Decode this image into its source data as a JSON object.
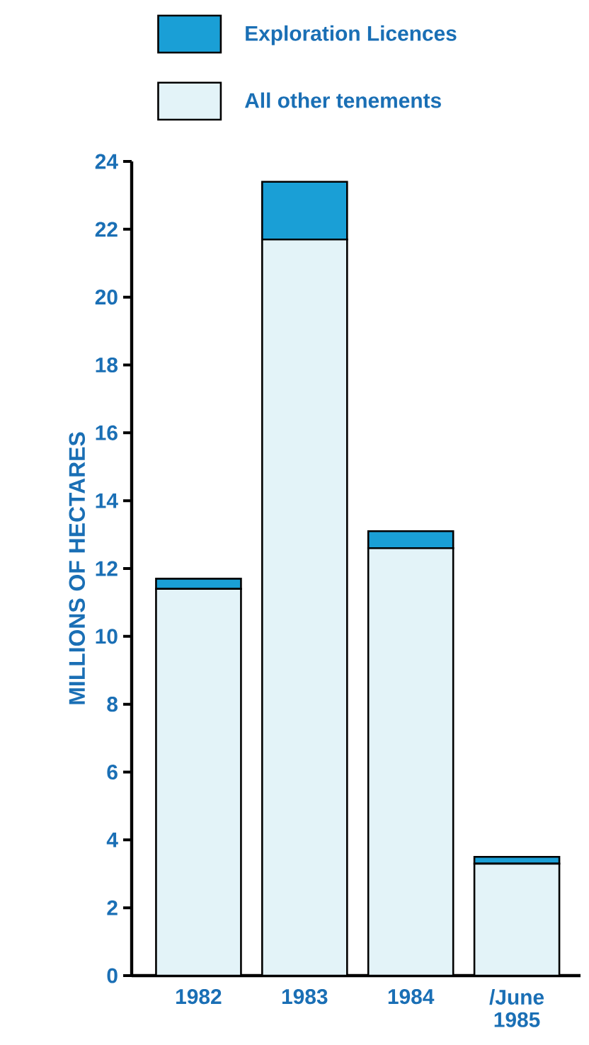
{
  "chart_data": {
    "type": "bar",
    "stacked": true,
    "ylabel": "MILLIONS OF HECTARES",
    "categories": [
      "1982",
      "1983",
      "1984",
      "/June 1985"
    ],
    "series": [
      {
        "name": "All other tenements",
        "color": "#e3f3f8",
        "values": [
          11.4,
          21.7,
          12.6,
          3.3
        ]
      },
      {
        "name": "Exploration Licences",
        "color": "#1a9fd6",
        "values": [
          0.3,
          1.7,
          0.5,
          0.2
        ]
      }
    ],
    "ylim": [
      0,
      24
    ],
    "yticks": [
      0,
      2,
      4,
      6,
      8,
      10,
      12,
      14,
      16,
      18,
      20,
      22,
      24
    ],
    "legend": "top"
  }
}
